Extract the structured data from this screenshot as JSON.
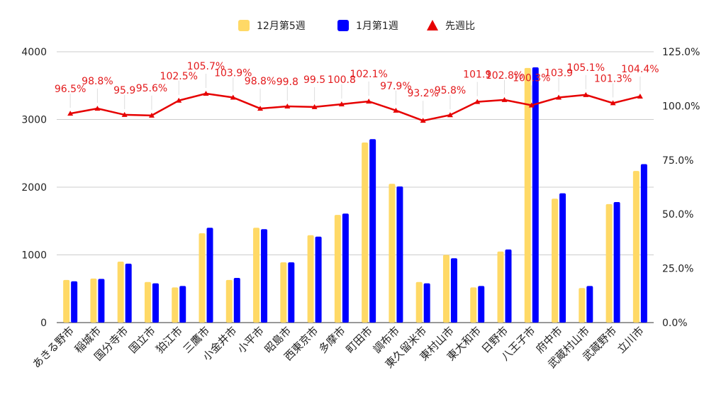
{
  "chart_data": {
    "type": "bar",
    "categories": [
      "あきる野市",
      "稲城市",
      "国分寺市",
      "国立市",
      "狛江市",
      "三鷹市",
      "小金井市",
      "小平市",
      "昭島市",
      "西東京市",
      "多摩市",
      "町田市",
      "調布市",
      "東久留米市",
      "東村山市",
      "東大和市",
      "日野市",
      "八王子市",
      "府中市",
      "武蔵村山市",
      "武蔵野市",
      "立川市"
    ],
    "series": [
      {
        "name": "12月第5週",
        "kind": "bar",
        "axis": "left",
        "color": "#ffd966",
        "values": [
          630,
          650,
          900,
          600,
          520,
          1320,
          630,
          1400,
          890,
          1290,
          1590,
          2660,
          2050,
          600,
          1000,
          520,
          1050,
          3760,
          1830,
          510,
          1750,
          2240
        ]
      },
      {
        "name": "1月第1週",
        "kind": "bar",
        "axis": "left",
        "color": "#0000ff",
        "values": [
          610,
          645,
          870,
          580,
          540,
          1400,
          660,
          1380,
          890,
          1270,
          1610,
          2710,
          2010,
          580,
          950,
          540,
          1080,
          3770,
          1910,
          540,
          1780,
          2340
        ]
      },
      {
        "name": "先週比",
        "kind": "line",
        "axis": "right",
        "color": "#e60000",
        "values": [
          96.5,
          98.8,
          95.9,
          95.6,
          102.5,
          105.7,
          103.9,
          98.8,
          99.8,
          99.5,
          100.8,
          102.1,
          97.9,
          93.2,
          95.8,
          101.9,
          102.8,
          100.3,
          103.9,
          105.1,
          101.3,
          104.4
        ],
        "labels": [
          "96.5%",
          "98.8%",
          "95.9",
          "95.6%",
          "102.5%",
          "105.7%",
          "103.9%",
          "98.8%",
          "99.8",
          "99.5",
          "100.8",
          "102.1%",
          "97.9%",
          "93.2%",
          "95.8%",
          "101.9",
          "102.8%",
          "100.3%",
          "103.9",
          "105.1%",
          "101.3%",
          "104.4%"
        ]
      }
    ],
    "y_left": {
      "min": 0,
      "max": 4000,
      "ticks": [
        0,
        1000,
        2000,
        3000,
        4000
      ],
      "tick_labels": [
        "0",
        "1000",
        "2000",
        "3000",
        "4000"
      ]
    },
    "y_right": {
      "min": 0,
      "max": 125,
      "ticks": [
        0,
        25,
        50,
        75,
        100,
        125
      ],
      "tick_labels": [
        "0.0%",
        "25.0%",
        "50.0%",
        "75.0%",
        "100.0%",
        "125.0%"
      ]
    },
    "legend_position": "top-center",
    "grid": true,
    "xlabel": "",
    "ylabel": ""
  }
}
